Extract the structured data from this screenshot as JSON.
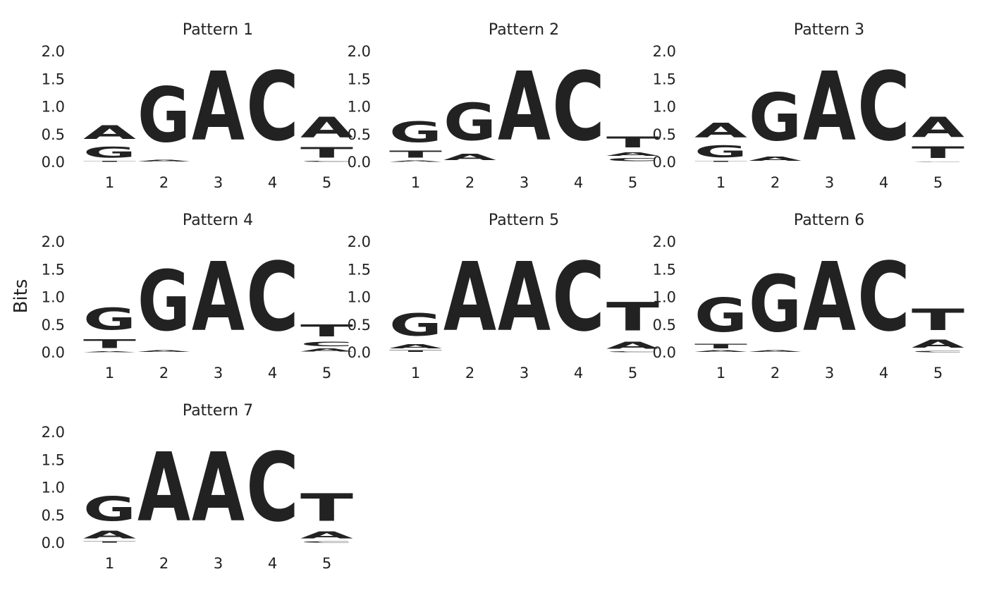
{
  "ylabel": "Bits",
  "colors": {
    "A": "#109648",
    "C": "#255C99",
    "G": "#F7B32B",
    "T": "#D62839"
  },
  "chart_data": [
    {
      "type": "sequence-logo",
      "title": "Pattern 1",
      "ylabel": "Bits",
      "ylim": [
        0,
        2
      ],
      "yticks": [
        "0.0",
        "0.5",
        "1.0",
        "1.5",
        "2.0"
      ],
      "positions": [
        "1",
        "2",
        "3",
        "4",
        "5"
      ],
      "columns": [
        [
          [
            "T",
            0.02
          ],
          [
            "G",
            0.32
          ],
          [
            "A",
            0.4
          ]
        ],
        [
          [
            "A",
            0.05
          ],
          [
            "G",
            1.6
          ]
        ],
        [
          [
            "A",
            2.0
          ]
        ],
        [
          [
            "C",
            2.0
          ]
        ],
        [
          [
            "C",
            0.02
          ],
          [
            "T",
            0.3
          ],
          [
            "A",
            0.6
          ]
        ]
      ]
    },
    {
      "type": "sequence-logo",
      "title": "Pattern 2",
      "ylabel": "Bits",
      "ylim": [
        0,
        2
      ],
      "yticks": [
        "0.0",
        "0.5",
        "1.0",
        "1.5",
        "2.0"
      ],
      "positions": [
        "1",
        "2",
        "3",
        "4",
        "5"
      ],
      "columns": [
        [
          [
            "A",
            0.04
          ],
          [
            "T",
            0.2
          ],
          [
            "G",
            0.6
          ]
        ],
        [
          [
            "A",
            0.18
          ],
          [
            "G",
            1.07
          ]
        ],
        [
          [
            "A",
            2.0
          ]
        ],
        [
          [
            "C",
            2.0
          ]
        ],
        [
          [
            "C",
            0.09
          ],
          [
            "A",
            0.11
          ],
          [
            "T",
            0.32
          ]
        ]
      ]
    },
    {
      "type": "sequence-logo",
      "title": "Pattern 3",
      "ylabel": "Bits",
      "ylim": [
        0,
        2
      ],
      "yticks": [
        "0.0",
        "0.5",
        "1.0",
        "1.5",
        "2.0"
      ],
      "positions": [
        "1",
        "2",
        "3",
        "4",
        "5"
      ],
      "columns": [
        [
          [
            "T",
            0.02
          ],
          [
            "G",
            0.34
          ],
          [
            "A",
            0.42
          ]
        ],
        [
          [
            "A",
            0.12
          ],
          [
            "G",
            1.38
          ]
        ],
        [
          [
            "A",
            2.0
          ]
        ],
        [
          [
            "C",
            2.0
          ]
        ],
        [
          [
            "C",
            0.01
          ],
          [
            "T",
            0.33
          ],
          [
            "A",
            0.58
          ]
        ]
      ]
    },
    {
      "type": "sequence-logo",
      "title": "Pattern 4",
      "ylabel": "Bits",
      "ylim": [
        0,
        2
      ],
      "yticks": [
        "0.0",
        "0.5",
        "1.0",
        "1.5",
        "2.0"
      ],
      "positions": [
        "1",
        "2",
        "3",
        "4",
        "5"
      ],
      "columns": [
        [
          [
            "A",
            0.03
          ],
          [
            "T",
            0.25
          ],
          [
            "G",
            0.64
          ]
        ],
        [
          [
            "A",
            0.05
          ],
          [
            "G",
            1.75
          ]
        ],
        [
          [
            "A",
            2.0
          ]
        ],
        [
          [
            "C",
            2.0
          ]
        ],
        [
          [
            "A",
            0.09
          ],
          [
            "C",
            0.13
          ],
          [
            "T",
            0.35
          ]
        ]
      ]
    },
    {
      "type": "sequence-logo",
      "title": "Pattern 5",
      "ylabel": "Bits",
      "ylim": [
        0,
        2
      ],
      "yticks": [
        "0.0",
        "0.5",
        "1.0",
        "1.5",
        "2.0"
      ],
      "positions": [
        "1",
        "2",
        "3",
        "4",
        "5"
      ],
      "columns": [
        [
          [
            "T",
            0.05
          ],
          [
            "A",
            0.12
          ],
          [
            "G",
            0.65
          ]
        ],
        [
          [
            "A",
            2.0
          ]
        ],
        [
          [
            "A",
            2.0
          ]
        ],
        [
          [
            "C",
            2.0
          ]
        ],
        [
          [
            "C",
            0.03
          ],
          [
            "A",
            0.2
          ],
          [
            "T",
            0.82
          ]
        ]
      ]
    },
    {
      "type": "sequence-logo",
      "title": "Pattern 6",
      "ylabel": "Bits",
      "ylim": [
        0,
        2
      ],
      "yticks": [
        "0.0",
        "0.5",
        "1.0",
        "1.5",
        "2.0"
      ],
      "positions": [
        "1",
        "2",
        "3",
        "4",
        "5"
      ],
      "columns": [
        [
          [
            "A",
            0.05
          ],
          [
            "T",
            0.13
          ],
          [
            "G",
            0.98
          ]
        ],
        [
          [
            "A",
            0.05
          ],
          [
            "G",
            1.65
          ]
        ],
        [
          [
            "A",
            2.0
          ]
        ],
        [
          [
            "C",
            2.0
          ]
        ],
        [
          [
            "C",
            0.04
          ],
          [
            "A",
            0.24
          ],
          [
            "T",
            0.62
          ]
        ]
      ]
    },
    {
      "type": "sequence-logo",
      "title": "Pattern 7",
      "ylabel": "Bits",
      "ylim": [
        0,
        2
      ],
      "yticks": [
        "0.0",
        "0.5",
        "1.0",
        "1.5",
        "2.0"
      ],
      "positions": [
        "1",
        "2",
        "3",
        "4",
        "5"
      ],
      "columns": [
        [
          [
            "T",
            0.04
          ],
          [
            "A",
            0.22
          ],
          [
            "G",
            0.7
          ]
        ],
        [
          [
            "A",
            2.0
          ]
        ],
        [
          [
            "A",
            2.0
          ]
        ],
        [
          [
            "C",
            2.0
          ]
        ],
        [
          [
            "C",
            0.04
          ],
          [
            "A",
            0.2
          ],
          [
            "T",
            0.8
          ]
        ]
      ]
    }
  ]
}
